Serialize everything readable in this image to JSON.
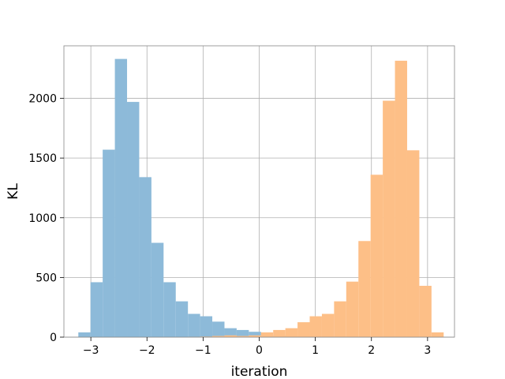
{
  "chart_data": {
    "type": "bar",
    "subtype": "overlapping-histogram",
    "title": "",
    "xlabel": "iteration",
    "ylabel": "KL",
    "xlim": [
      -3.48,
      3.48
    ],
    "ylim": [
      0,
      2440
    ],
    "xticks": [
      -3,
      -2,
      -1,
      0,
      1,
      2,
      3
    ],
    "xtick_labels": [
      "−3",
      "−2",
      "−1",
      "0",
      "1",
      "2",
      "3"
    ],
    "yticks": [
      0,
      500,
      1000,
      1500,
      2000
    ],
    "ytick_labels": [
      "0",
      "500",
      "1000",
      "1500",
      "2000"
    ],
    "grid": true,
    "legend": "none",
    "series": [
      {
        "color": "#8dbad9",
        "bin_width": 0.217,
        "bin_starts": [
          -3.223,
          -3.006,
          -2.789,
          -2.572,
          -2.355,
          -2.138,
          -1.921,
          -1.704,
          -1.487,
          -1.27,
          -1.053,
          -0.836,
          -0.619,
          -0.402,
          -0.185,
          0.032,
          0.249,
          0.466,
          0.683
        ],
        "values": [
          40,
          460,
          1570,
          2330,
          1970,
          1340,
          790,
          460,
          300,
          195,
          175,
          130,
          75,
          60,
          45,
          15,
          10,
          15,
          5
        ]
      },
      {
        "color": "#fdbf87",
        "bin_width": 0.217,
        "bin_starts": [
          -1.27,
          -1.053,
          -0.836,
          -0.619,
          -0.402,
          -0.185,
          0.032,
          0.249,
          0.466,
          0.683,
          0.9,
          1.117,
          1.334,
          1.551,
          1.768,
          1.985,
          2.202,
          2.419,
          2.636,
          2.853,
          3.07
        ],
        "values": [
          2,
          5,
          10,
          15,
          10,
          15,
          40,
          60,
          75,
          125,
          175,
          195,
          300,
          465,
          805,
          1360,
          1980,
          2315,
          1565,
          430,
          40
        ]
      }
    ]
  }
}
